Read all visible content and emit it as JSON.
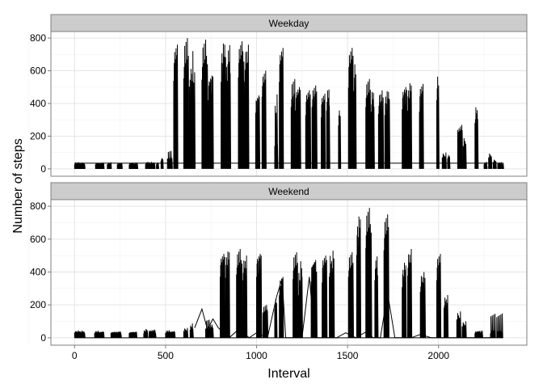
{
  "chart_data": {
    "type": "line",
    "xlabel": "Interval",
    "ylabel": "Number of steps",
    "xlim": [
      -130,
      2485
    ],
    "ylim": [
      -45,
      840
    ],
    "x_ticks": [
      0,
      500,
      1000,
      1500,
      2000
    ],
    "x_tick_labels": [
      "0",
      "500",
      "1000",
      "1500",
      "2000"
    ],
    "y_ticks": [
      0,
      200,
      400,
      600,
      800
    ],
    "y_tick_labels": [
      "0",
      "200",
      "400",
      "600",
      "800"
    ],
    "grid": true,
    "facets": [
      {
        "name": "Weekday",
        "baseline": 35,
        "clusters": [
          {
            "x": [
              0,
              55
            ],
            "h": [
              40,
              38,
              42,
              36
            ]
          },
          {
            "x": [
              115,
              160
            ],
            "h": [
              38,
              40,
              36
            ]
          },
          {
            "x": [
              180,
              200
            ],
            "h": [
              40,
              35
            ]
          },
          {
            "x": [
              235,
              260
            ],
            "h": [
              38,
              40,
              36
            ]
          },
          {
            "x": [
              300,
              345
            ],
            "h": [
              36,
              40,
              38
            ]
          },
          {
            "x": [
              390,
              440
            ],
            "h": [
              40,
              45,
              42,
              38
            ]
          },
          {
            "x": [
              450,
              460
            ],
            "h": [
              40
            ]
          },
          {
            "x": [
              475,
              485
            ],
            "h": [
              70
            ]
          },
          {
            "x": [
              510,
              535
            ],
            "h": [
              90,
              70,
              110
            ]
          },
          {
            "x": [
              545,
              565
            ],
            "h": [
              770,
              790,
              760
            ]
          },
          {
            "x": [
              600,
              625
            ],
            "h": [
              790,
              760,
              800
            ]
          },
          {
            "x": [
              630,
              660
            ],
            "h": [
              720,
              600,
              580,
              610
            ]
          },
          {
            "x": [
              700,
              730
            ],
            "h": [
              780,
              760,
              790
            ]
          },
          {
            "x": [
              735,
              760
            ],
            "h": [
              600,
              620,
              570
            ]
          },
          {
            "x": [
              805,
              835
            ],
            "h": [
              760,
              790,
              750,
              780
            ]
          },
          {
            "x": [
              840,
              855
            ],
            "h": [
              770,
              780
            ]
          },
          {
            "x": [
              900,
              930
            ],
            "h": [
              800,
              790,
              780
            ]
          },
          {
            "x": [
              935,
              955
            ],
            "h": [
              760,
              740
            ]
          },
          {
            "x": [
              995,
              1015
            ],
            "h": [
              490,
              510,
              440
            ]
          },
          {
            "x": [
              1030,
              1050
            ],
            "h": [
              630,
              620,
              600
            ]
          },
          {
            "x": [
              1100,
              1115
            ],
            "h": [
              200,
              470
            ]
          },
          {
            "x": [
              1125,
              1145
            ],
            "h": [
              760,
              780,
              740
            ]
          },
          {
            "x": [
              1190,
              1210
            ],
            "h": [
              540,
              520,
              550
            ]
          },
          {
            "x": [
              1215,
              1240
            ],
            "h": [
              510,
              530,
              500
            ]
          },
          {
            "x": [
              1270,
              1295
            ],
            "h": [
              470,
              500,
              480
            ]
          },
          {
            "x": [
              1305,
              1330
            ],
            "h": [
              540,
              520,
              510
            ]
          },
          {
            "x": [
              1355,
              1375
            ],
            "h": [
              450,
              480,
              460
            ]
          },
          {
            "x": [
              1385,
              1400
            ],
            "h": [
              510,
              500
            ]
          },
          {
            "x": [
              1450,
              1460
            ],
            "h": [
              380,
              400
            ]
          },
          {
            "x": [
              1505,
              1530
            ],
            "h": [
              710,
              760,
              740
            ]
          },
          {
            "x": [
              1535,
              1545
            ],
            "h": [
              680
            ]
          },
          {
            "x": [
              1600,
              1625
            ],
            "h": [
              540,
              530,
              550
            ]
          },
          {
            "x": [
              1630,
              1645
            ],
            "h": [
              500,
              480
            ]
          },
          {
            "x": [
              1670,
              1695
            ],
            "h": [
              480,
              470
            ]
          },
          {
            "x": [
              1705,
              1730
            ],
            "h": [
              470,
              490
            ]
          },
          {
            "x": [
              1800,
              1825
            ],
            "h": [
              520,
              530,
              500
            ]
          },
          {
            "x": [
              1830,
              1850
            ],
            "h": [
              510,
              540
            ]
          },
          {
            "x": [
              1895,
              1915
            ],
            "h": [
              500,
              540,
              520
            ]
          },
          {
            "x": [
              1990,
              2000
            ],
            "h": [
              600
            ]
          },
          {
            "x": [
              2020,
              2040
            ],
            "h": [
              100,
              80
            ]
          },
          {
            "x": [
              2050,
              2060
            ],
            "h": [
              90
            ]
          },
          {
            "x": [
              2105,
              2130
            ],
            "h": [
              340,
              260,
              240
            ]
          },
          {
            "x": [
              2135,
              2150
            ],
            "h": [
              200,
              160
            ]
          },
          {
            "x": [
              2200,
              2215
            ],
            "h": [
              400,
              370
            ]
          },
          {
            "x": [
              2250,
              2265
            ],
            "h": [
              40,
              45
            ]
          },
          {
            "x": [
              2275,
              2290
            ],
            "h": [
              100,
              40
            ]
          },
          {
            "x": [
              2300,
              2315
            ],
            "h": [
              60,
              50
            ]
          },
          {
            "x": [
              2325,
              2355
            ],
            "h": [
              45,
              30,
              40
            ]
          }
        ]
      },
      {
        "name": "Weekend",
        "baseline": 0,
        "clusters": [
          {
            "x": [
              0,
              55
            ],
            "h": [
              45,
              40,
              42,
              38
            ]
          },
          {
            "x": [
              110,
              160
            ],
            "h": [
              40,
              38,
              42
            ]
          },
          {
            "x": [
              200,
              255
            ],
            "h": [
              40,
              38,
              36
            ]
          },
          {
            "x": [
              300,
              340
            ],
            "h": [
              40,
              38,
              35
            ]
          },
          {
            "x": [
              380,
              400
            ],
            "h": [
              40,
              55
            ]
          },
          {
            "x": [
              410,
              445
            ],
            "h": [
              60,
              45,
              40
            ]
          },
          {
            "x": [
              500,
              550
            ],
            "h": [
              42,
              40,
              45
            ]
          },
          {
            "x": [
              600,
              620
            ],
            "h": [
              60,
              40
            ]
          },
          {
            "x": [
              635,
              650
            ],
            "h": [
              70,
              90
            ]
          },
          {
            "x": [
              720,
              760
            ],
            "h": [
              80,
              60,
              110
            ]
          },
          {
            "x": [
              800,
              825
            ],
            "h": [
              530,
              540,
              510
            ]
          },
          {
            "x": [
              830,
              850
            ],
            "h": [
              520,
              540
            ]
          },
          {
            "x": [
              890,
              920
            ],
            "h": [
              550,
              520,
              540
            ]
          },
          {
            "x": [
              925,
              945
            ],
            "h": [
              500,
              480
            ]
          },
          {
            "x": [
              1000,
              1025
            ],
            "h": [
              530,
              550,
              510
            ]
          },
          {
            "x": [
              1035,
              1060
            ],
            "h": [
              220,
              180,
              200
            ]
          },
          {
            "x": [
              1100,
              1110
            ],
            "h": [
              250
            ]
          },
          {
            "x": [
              1125,
              1145
            ],
            "h": [
              370
            ]
          },
          {
            "x": [
              1200,
              1225
            ],
            "h": [
              510,
              500,
              520
            ]
          },
          {
            "x": [
              1230,
              1250
            ],
            "h": [
              370,
              480
            ]
          },
          {
            "x": [
              1300,
              1330
            ],
            "h": [
              490,
              520,
              460
            ]
          },
          {
            "x": [
              1360,
              1385
            ],
            "h": [
              480,
              520,
              500
            ]
          },
          {
            "x": [
              1400,
              1425
            ],
            "h": [
              530,
              480
            ]
          },
          {
            "x": [
              1505,
              1530
            ],
            "h": [
              530,
              500,
              520
            ]
          },
          {
            "x": [
              1550,
              1570
            ],
            "h": [
              720,
              760
            ]
          },
          {
            "x": [
              1600,
              1630
            ],
            "h": [
              780,
              760,
              790
            ]
          },
          {
            "x": [
              1650,
              1665
            ],
            "h": [
              500,
              510
            ]
          },
          {
            "x": [
              1700,
              1725
            ],
            "h": [
              760,
              740,
              750
            ]
          },
          {
            "x": [
              1800,
              1820
            ],
            "h": [
              440,
              470
            ]
          },
          {
            "x": [
              1830,
              1850
            ],
            "h": [
              540,
              520
            ]
          },
          {
            "x": [
              1900,
              1925
            ],
            "h": [
              400,
              380
            ]
          },
          {
            "x": [
              1990,
              2010
            ],
            "h": [
              500,
              520,
              510
            ]
          },
          {
            "x": [
              2030,
              2050
            ],
            "h": [
              260,
              240
            ]
          },
          {
            "x": [
              2100,
              2120
            ],
            "h": [
              160,
              120
            ]
          },
          {
            "x": [
              2130,
              2150
            ],
            "h": [
              100,
              80
            ]
          },
          {
            "x": [
              2200,
              2240
            ],
            "h": [
              40,
              45,
              38
            ]
          },
          {
            "x": [
              2285,
              2310
            ],
            "h": [
              40,
              160,
              45
            ]
          },
          {
            "x": [
              2320,
              2350
            ],
            "h": [
              180,
              40,
              42
            ]
          }
        ],
        "line": [
          [
            660,
            60
          ],
          [
            700,
            175
          ],
          [
            730,
            50
          ],
          [
            760,
            115
          ],
          [
            790,
            60
          ],
          [
            850,
            0
          ],
          [
            900,
            50
          ],
          [
            960,
            0
          ],
          [
            1000,
            30
          ],
          [
            1060,
            0
          ],
          [
            1110,
            250
          ],
          [
            1140,
            360
          ],
          [
            1160,
            0
          ],
          [
            1250,
            0
          ],
          [
            1290,
            370
          ],
          [
            1320,
            0
          ],
          [
            1440,
            0
          ],
          [
            1490,
            30
          ],
          [
            1545,
            0
          ],
          [
            1600,
            35
          ],
          [
            1640,
            0
          ],
          [
            1680,
            0
          ],
          [
            1720,
            270
          ],
          [
            1760,
            0
          ],
          [
            1850,
            0
          ],
          [
            1900,
            20
          ],
          [
            1960,
            0
          ],
          [
            2100,
            0
          ],
          [
            2300,
            0
          ]
        ]
      }
    ]
  }
}
